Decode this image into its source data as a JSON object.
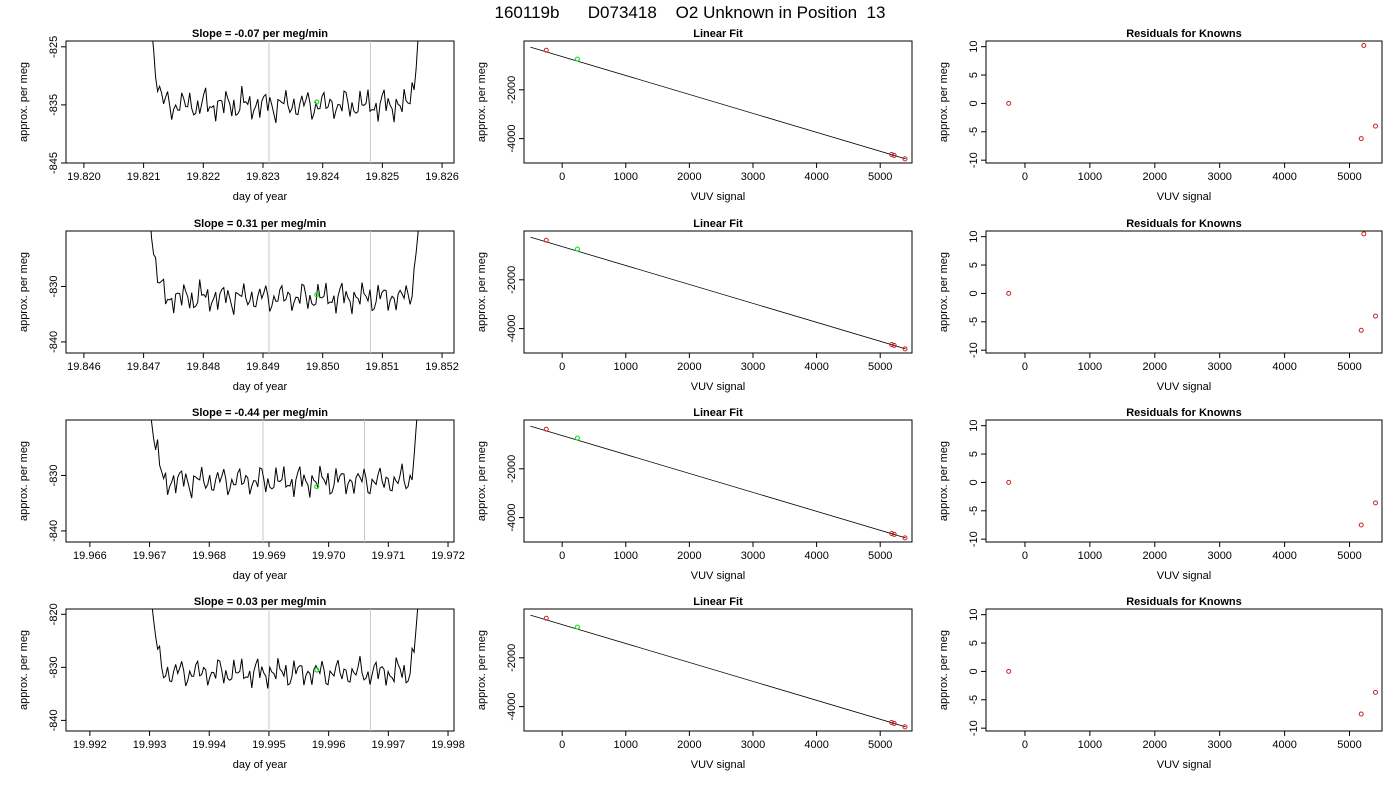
{
  "figure": {
    "title": "160119b      D073418    O2 Unknown in Position  13",
    "colors": {
      "trace": "#000000",
      "known": "#cc2222",
      "unknown": "#22dd22",
      "window_line": "#c8c8c8",
      "frame": "#000000"
    }
  },
  "chart_data": [
    {
      "type": "line",
      "row": 1,
      "kind": "timeseries",
      "title": "Slope =  -0.07  per meg/min",
      "xlabel": "day of year",
      "ylabel": "approx. per meg",
      "xlim": [
        19.8197,
        19.8262
      ],
      "ylim": [
        -845,
        -824
      ],
      "xticks": [
        "19.820",
        "19.821",
        "19.822",
        "19.823",
        "19.824",
        "19.825",
        "19.826"
      ],
      "yticks": [
        "-825",
        "-835",
        "-845"
      ],
      "window": [
        19.8231,
        19.8248
      ],
      "unknown_point": [
        19.8239,
        -834.5
      ],
      "series_range": [
        19.821,
        19.8257
      ],
      "baseline": -835
    },
    {
      "type": "scatter",
      "row": 1,
      "kind": "linear_fit",
      "title": "Linear Fit",
      "xlabel": "VUV signal",
      "ylabel": "approx. per meg",
      "xlim": [
        -600,
        5500
      ],
      "ylim": [
        -5000,
        0
      ],
      "xticks": [
        "0",
        "1000",
        "2000",
        "3000",
        "4000",
        "5000"
      ],
      "yticks": [
        "-2000",
        "-4000"
      ],
      "fit_line": [
        [
          -500,
          -250
        ],
        [
          5400,
          -4830
        ]
      ],
      "knowns": [
        [
          -250,
          -380
        ],
        [
          5180,
          -4650
        ],
        [
          5220,
          -4690
        ],
        [
          5390,
          -4830
        ]
      ],
      "unknown": [
        [
          240,
          -740
        ]
      ]
    },
    {
      "type": "scatter",
      "row": 1,
      "kind": "residuals",
      "title": "Residuals for Knowns",
      "xlabel": "VUV signal",
      "ylabel": "approx. per meg",
      "xlim": [
        -600,
        5500
      ],
      "ylim": [
        -10.5,
        11
      ],
      "xticks": [
        "0",
        "1000",
        "2000",
        "3000",
        "4000",
        "5000"
      ],
      "yticks": [
        "-10",
        "-5",
        "0",
        "5",
        "10"
      ],
      "points": [
        [
          -250,
          0
        ],
        [
          5180,
          -6.2
        ],
        [
          5220,
          10.2
        ],
        [
          5400,
          -4
        ]
      ]
    },
    {
      "type": "line",
      "row": 2,
      "kind": "timeseries",
      "title": "Slope =  0.31  per meg/min",
      "xlabel": "day of year",
      "ylabel": "approx. per meg",
      "xlim": [
        19.8457,
        19.8522
      ],
      "ylim": [
        -842,
        -820
      ],
      "xticks": [
        "19.846",
        "19.847",
        "19.848",
        "19.849",
        "19.850",
        "19.851",
        "19.852"
      ],
      "yticks": [
        "-830",
        "-840"
      ],
      "window": [
        19.8491,
        19.8508
      ],
      "unknown_point": [
        19.8499,
        -831.5
      ],
      "series_range": [
        19.847,
        19.8517
      ],
      "baseline": -832
    },
    {
      "type": "scatter",
      "row": 2,
      "kind": "linear_fit",
      "title": "Linear Fit",
      "xlabel": "VUV signal",
      "ylabel": "approx. per meg",
      "xlim": [
        -600,
        5500
      ],
      "ylim": [
        -5000,
        0
      ],
      "xticks": [
        "0",
        "1000",
        "2000",
        "3000",
        "4000",
        "5000"
      ],
      "yticks": [
        "-2000",
        "-4000"
      ],
      "fit_line": [
        [
          -500,
          -250
        ],
        [
          5400,
          -4830
        ]
      ],
      "knowns": [
        [
          -250,
          -380
        ],
        [
          5180,
          -4650
        ],
        [
          5220,
          -4690
        ],
        [
          5390,
          -4830
        ]
      ],
      "unknown": [
        [
          240,
          -740
        ]
      ]
    },
    {
      "type": "scatter",
      "row": 2,
      "kind": "residuals",
      "title": "Residuals for Knowns",
      "xlabel": "VUV signal",
      "ylabel": "approx. per meg",
      "xlim": [
        -600,
        5500
      ],
      "ylim": [
        -10.5,
        11
      ],
      "xticks": [
        "0",
        "1000",
        "2000",
        "3000",
        "4000",
        "5000"
      ],
      "yticks": [
        "-10",
        "-5",
        "0",
        "5",
        "10"
      ],
      "points": [
        [
          -250,
          0
        ],
        [
          5180,
          -6.5
        ],
        [
          5220,
          10.5
        ],
        [
          5400,
          -4
        ]
      ]
    },
    {
      "type": "line",
      "row": 3,
      "kind": "timeseries",
      "title": "Slope =  -0.44  per meg/min",
      "xlabel": "day of year",
      "ylabel": "approx. per meg",
      "xlim": [
        19.9656,
        19.9721
      ],
      "ylim": [
        -842,
        -820
      ],
      "xticks": [
        "19.966",
        "19.967",
        "19.968",
        "19.969",
        "19.970",
        "19.971",
        "19.972"
      ],
      "yticks": [
        "-830",
        "-840"
      ],
      "window": [
        19.9689,
        19.9706
      ],
      "unknown_point": [
        19.9698,
        -832
      ],
      "series_range": [
        19.9669,
        19.9716
      ],
      "baseline": -831
    },
    {
      "type": "scatter",
      "row": 3,
      "kind": "linear_fit",
      "title": "Linear Fit",
      "xlabel": "VUV signal",
      "ylabel": "approx. per meg",
      "xlim": [
        -600,
        5500
      ],
      "ylim": [
        -5000,
        0
      ],
      "xticks": [
        "0",
        "1000",
        "2000",
        "3000",
        "4000",
        "5000"
      ],
      "yticks": [
        "-2000",
        "-4000"
      ],
      "fit_line": [
        [
          -500,
          -250
        ],
        [
          5400,
          -4830
        ]
      ],
      "knowns": [
        [
          -250,
          -380
        ],
        [
          5180,
          -4650
        ],
        [
          5220,
          -4690
        ],
        [
          5390,
          -4830
        ]
      ],
      "unknown": [
        [
          240,
          -740
        ]
      ]
    },
    {
      "type": "scatter",
      "row": 3,
      "kind": "residuals",
      "title": "Residuals for Knowns",
      "xlabel": "VUV signal",
      "ylabel": "approx. per meg",
      "xlim": [
        -600,
        5500
      ],
      "ylim": [
        -10.5,
        11
      ],
      "xticks": [
        "0",
        "1000",
        "2000",
        "3000",
        "4000",
        "5000"
      ],
      "yticks": [
        "-10",
        "-5",
        "0",
        "5",
        "10"
      ],
      "points": [
        [
          -250,
          0
        ],
        [
          5180,
          -7.5
        ],
        [
          5400,
          -3.6
        ]
      ]
    },
    {
      "type": "line",
      "row": 4,
      "kind": "timeseries",
      "title": "Slope =  0.03  per meg/min",
      "xlabel": "day of year",
      "ylabel": "approx. per meg",
      "xlim": [
        19.9916,
        19.9981
      ],
      "ylim": [
        -842,
        -819
      ],
      "xticks": [
        "19.992",
        "19.993",
        "19.994",
        "19.995",
        "19.996",
        "19.997",
        "19.998"
      ],
      "yticks": [
        "-820",
        "-830",
        "-840"
      ],
      "window": [
        19.995,
        19.9967
      ],
      "unknown_point": [
        19.9958,
        -830.5
      ],
      "series_range": [
        19.9929,
        19.9976
      ],
      "baseline": -831
    },
    {
      "type": "scatter",
      "row": 4,
      "kind": "linear_fit",
      "title": "Linear Fit",
      "xlabel": "VUV signal",
      "ylabel": "approx. per meg",
      "xlim": [
        -600,
        5500
      ],
      "ylim": [
        -5000,
        0
      ],
      "xticks": [
        "0",
        "1000",
        "2000",
        "3000",
        "4000",
        "5000"
      ],
      "yticks": [
        "-2000",
        "-4000"
      ],
      "fit_line": [
        [
          -500,
          -250
        ],
        [
          5400,
          -4830
        ]
      ],
      "knowns": [
        [
          -250,
          -380
        ],
        [
          5180,
          -4650
        ],
        [
          5220,
          -4690
        ],
        [
          5390,
          -4830
        ]
      ],
      "unknown": [
        [
          240,
          -740
        ]
      ]
    },
    {
      "type": "scatter",
      "row": 4,
      "kind": "residuals",
      "title": "Residuals for Knowns",
      "xlabel": "VUV signal",
      "ylabel": "approx. per meg",
      "xlim": [
        -600,
        5500
      ],
      "ylim": [
        -10.5,
        11
      ],
      "xticks": [
        "0",
        "1000",
        "2000",
        "3000",
        "4000",
        "5000"
      ],
      "yticks": [
        "-10",
        "-5",
        "0",
        "5",
        "10"
      ],
      "points": [
        [
          -250,
          0
        ],
        [
          5180,
          -7.5
        ],
        [
          5400,
          -3.7
        ]
      ]
    }
  ]
}
